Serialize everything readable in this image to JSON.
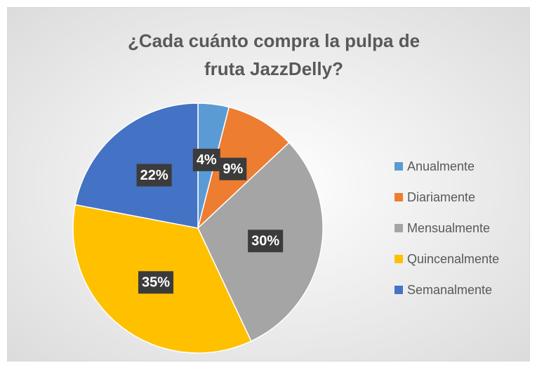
{
  "chart_data": {
    "type": "pie",
    "title": "¿Cada cuánto compra la pulpa de fruta JazzDelly?",
    "categories": [
      "Anualmente",
      "Diariamente",
      "Mensualmente",
      "Quincenalmente",
      "Semanalmente"
    ],
    "values": [
      4,
      9,
      30,
      35,
      22
    ],
    "value_labels": [
      "4%",
      "9%",
      "30%",
      "35%",
      "22%"
    ],
    "colors": [
      "#5B9BD5",
      "#ED7D31",
      "#A5A5A5",
      "#FFC000",
      "#4472C4"
    ],
    "legend": "right"
  }
}
